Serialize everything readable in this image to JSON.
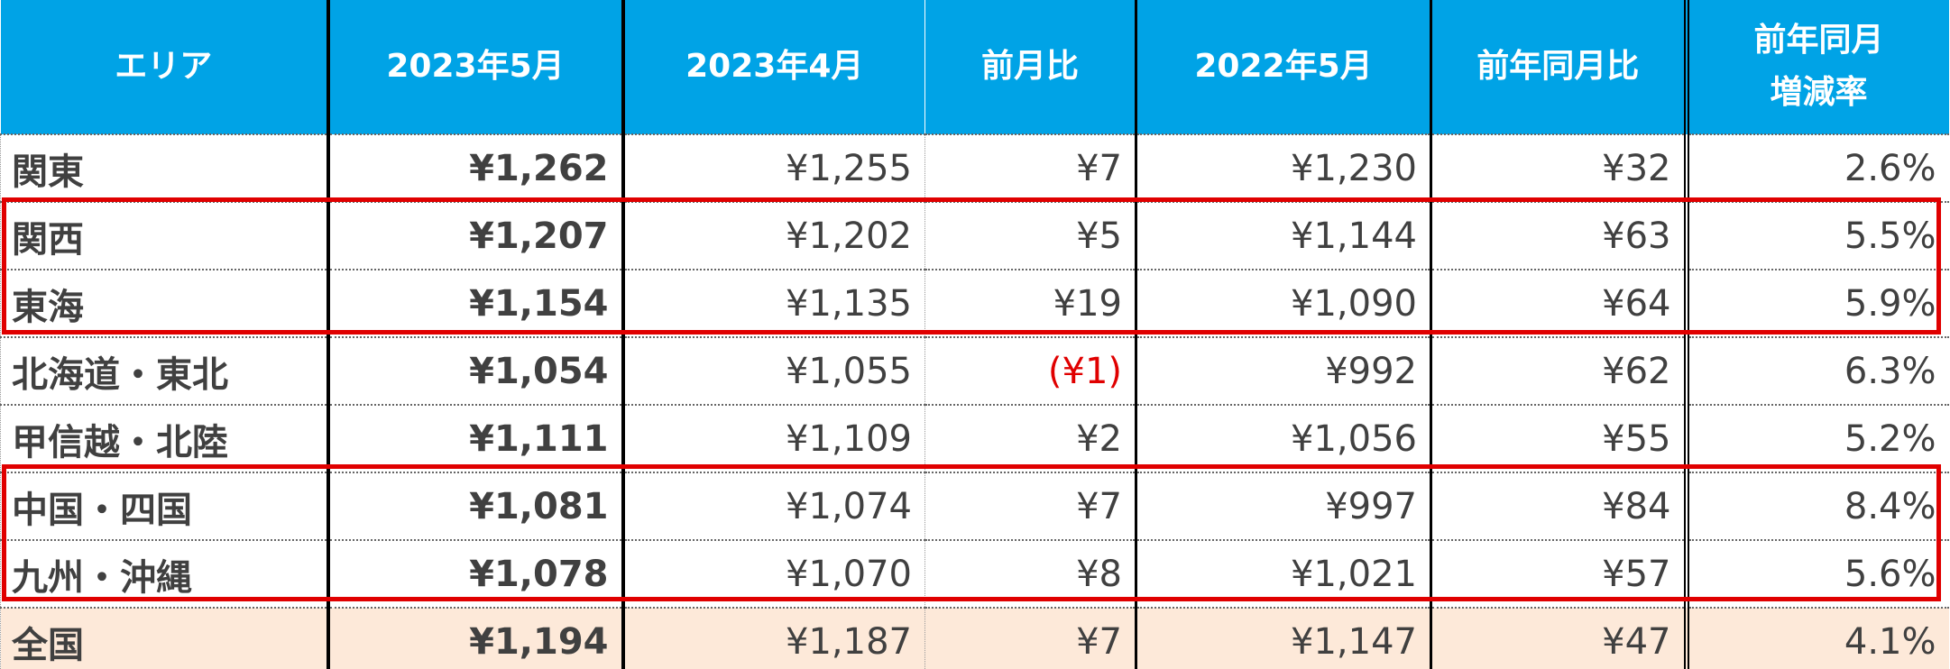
{
  "table": {
    "header": [
      "エリア",
      "2023年5月",
      "2023年4月",
      "前月比",
      "2022年5月",
      "前年同月比",
      "前年同月\n増減率"
    ],
    "rows": [
      [
        "関東",
        "¥1,262",
        "¥1,255",
        "¥7",
        "¥1,230",
        "¥32",
        "2.6%"
      ],
      [
        "関西",
        "¥1,207",
        "¥1,202",
        "¥5",
        "¥1,144",
        "¥63",
        "5.5%"
      ],
      [
        "東海",
        "¥1,154",
        "¥1,135",
        "¥19",
        "¥1,090",
        "¥64",
        "5.9%"
      ],
      [
        "北海道・東北",
        "¥1,054",
        "¥1,055",
        "(¥1)",
        "¥992",
        "¥62",
        "6.3%"
      ],
      [
        "甲信越・北陸",
        "¥1,111",
        "¥1,109",
        "¥2",
        "¥1,056",
        "¥55",
        "5.2%"
      ],
      [
        "中国・四国",
        "¥1,081",
        "¥1,074",
        "¥7",
        "¥997",
        "¥84",
        "8.4%"
      ],
      [
        "九州・沖縄",
        "¥1,078",
        "¥1,070",
        "¥8",
        "¥1,021",
        "¥57",
        "5.6%"
      ],
      [
        "全国",
        "¥1,194",
        "¥1,187",
        "¥7",
        "¥1,147",
        "¥47",
        "4.1%"
      ]
    ]
  }
}
